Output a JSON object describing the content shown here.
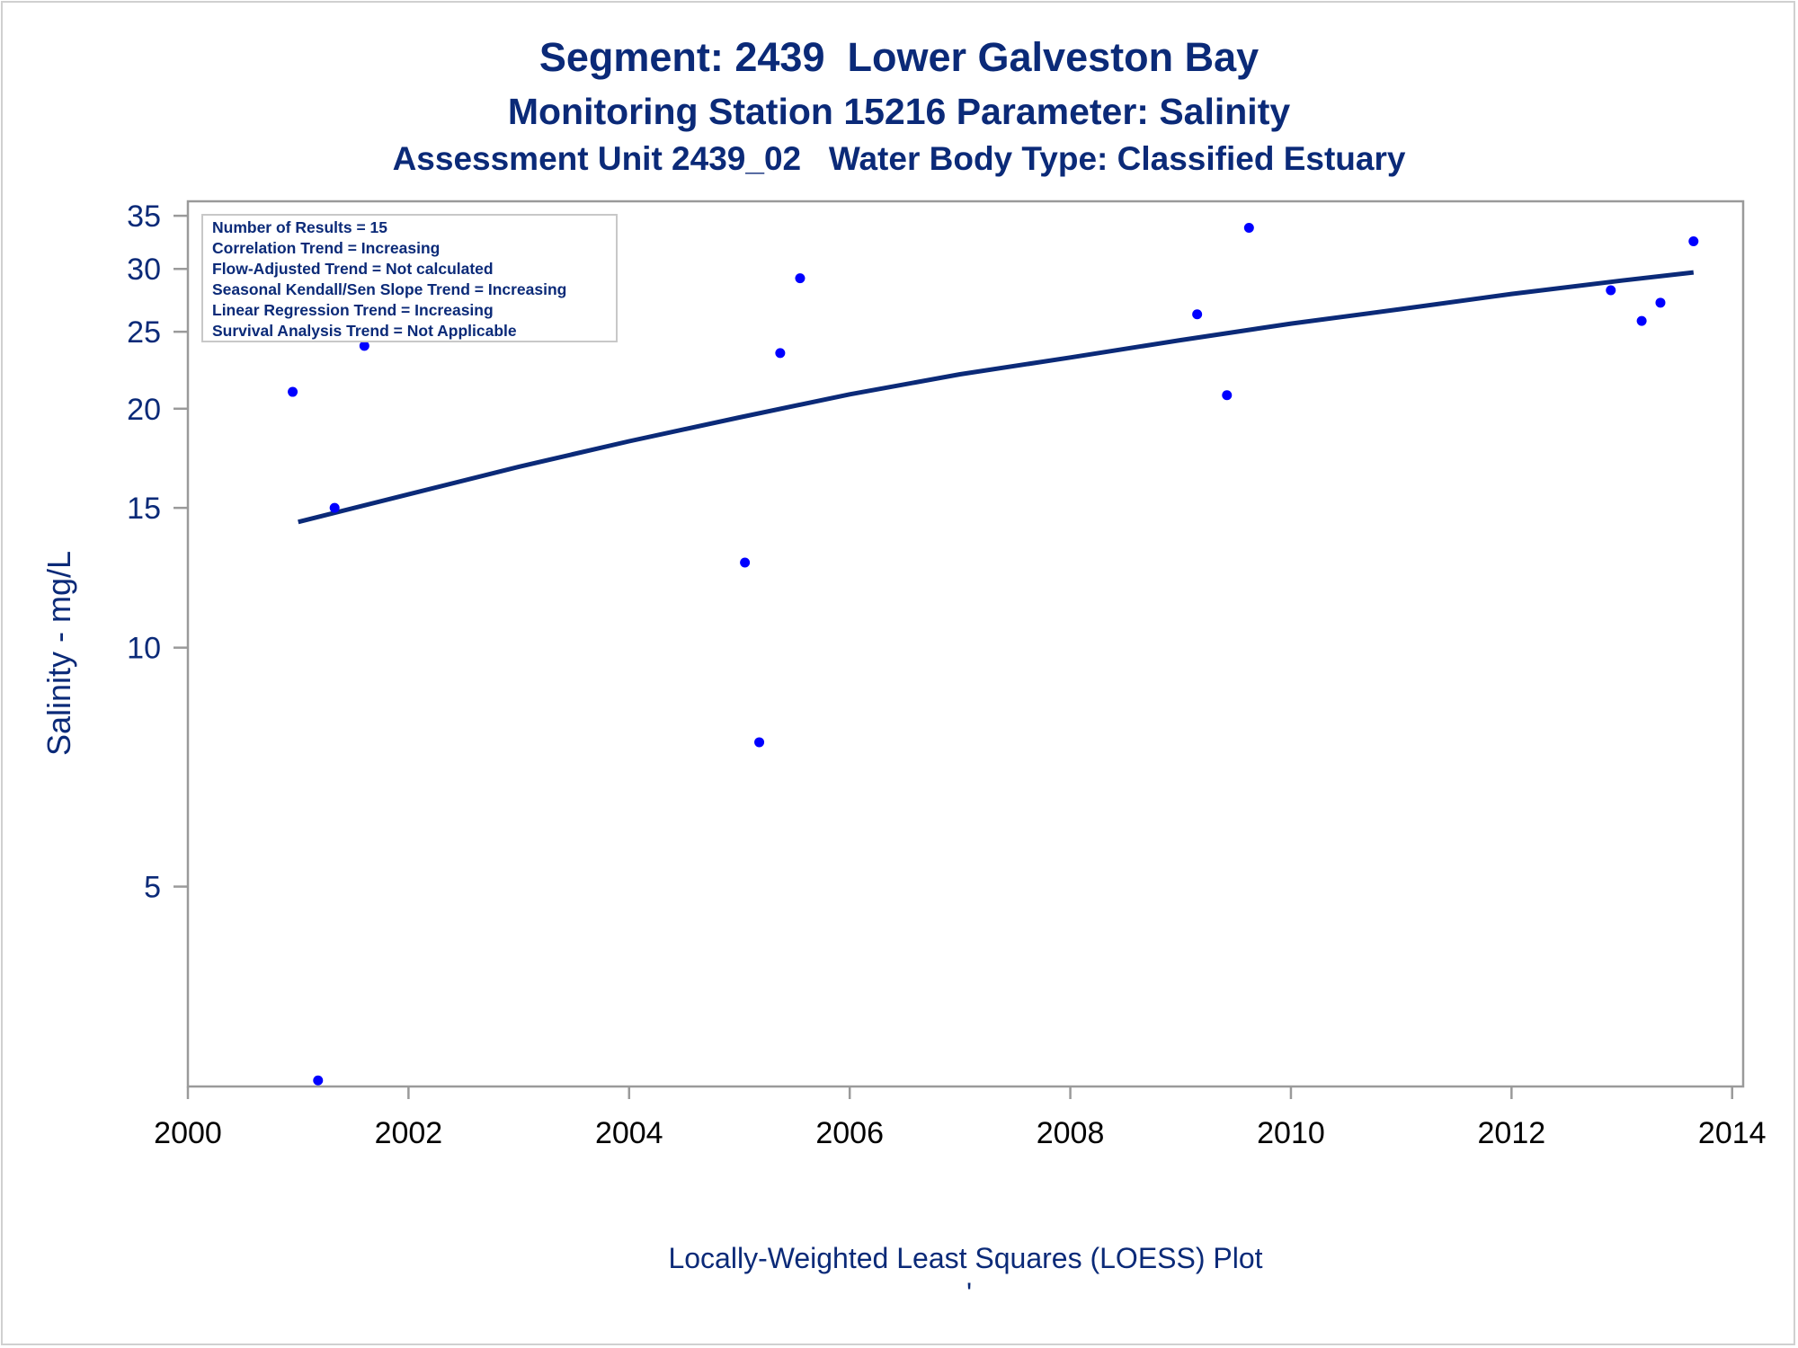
{
  "chart_data": {
    "type": "scatter",
    "title": "Segment: 2439  Lower Galveston Bay",
    "subtitle": "Monitoring Station 15216 Parameter: Salinity",
    "subtitle2": "Assessment Unit 2439_02   Water Body Type: Classified Estuary",
    "ylabel": "Salinity - mg/L",
    "xlabel": "Locally-Weighted Least Squares (LOESS) Plot",
    "xlabel_footnote": "'",
    "y_scale": "log",
    "xlim": [
      2000,
      2014.1
    ],
    "ylim": [
      2.8,
      36.5
    ],
    "x_ticks": [
      2000,
      2002,
      2004,
      2006,
      2008,
      2010,
      2012,
      2014
    ],
    "y_ticks": [
      5,
      10,
      15,
      20,
      25,
      30,
      35
    ],
    "grid": false,
    "stats_box": {
      "position": "top-left",
      "lines": [
        "Number of Results = 15",
        "Correlation Trend = Increasing",
        "Flow-Adjusted Trend = Not calculated",
        "Seasonal Kendall/Sen Slope Trend = Increasing",
        "Linear Regression Trend = Increasing",
        "Survival Analysis Trend = Not Applicable"
      ]
    },
    "series": [
      {
        "kind": "points",
        "color": "#0000ff",
        "points": [
          {
            "x": 2000.95,
            "y": 21.0
          },
          {
            "x": 2001.18,
            "y": 2.85
          },
          {
            "x": 2001.33,
            "y": 15.0
          },
          {
            "x": 2001.6,
            "y": 24.0
          },
          {
            "x": 2005.05,
            "y": 12.8
          },
          {
            "x": 2005.18,
            "y": 7.6
          },
          {
            "x": 2005.37,
            "y": 23.5
          },
          {
            "x": 2005.55,
            "y": 29.2
          },
          {
            "x": 2009.15,
            "y": 26.3
          },
          {
            "x": 2009.42,
            "y": 20.8
          },
          {
            "x": 2009.62,
            "y": 33.8
          },
          {
            "x": 2012.9,
            "y": 28.2
          },
          {
            "x": 2013.18,
            "y": 25.8
          },
          {
            "x": 2013.35,
            "y": 27.2
          },
          {
            "x": 2013.65,
            "y": 32.5
          }
        ]
      },
      {
        "kind": "loess-line",
        "color": "#0b2a78",
        "points": [
          {
            "x": 2001.0,
            "y": 14.4
          },
          {
            "x": 2002.0,
            "y": 15.6
          },
          {
            "x": 2003.0,
            "y": 16.9
          },
          {
            "x": 2004.0,
            "y": 18.2
          },
          {
            "x": 2005.0,
            "y": 19.5
          },
          {
            "x": 2006.0,
            "y": 20.85
          },
          {
            "x": 2007.0,
            "y": 22.1
          },
          {
            "x": 2008.0,
            "y": 23.2
          },
          {
            "x": 2009.0,
            "y": 24.4
          },
          {
            "x": 2010.0,
            "y": 25.6
          },
          {
            "x": 2011.0,
            "y": 26.7
          },
          {
            "x": 2012.0,
            "y": 27.9
          },
          {
            "x": 2013.0,
            "y": 29.0
          },
          {
            "x": 2013.65,
            "y": 29.7
          }
        ]
      }
    ]
  }
}
